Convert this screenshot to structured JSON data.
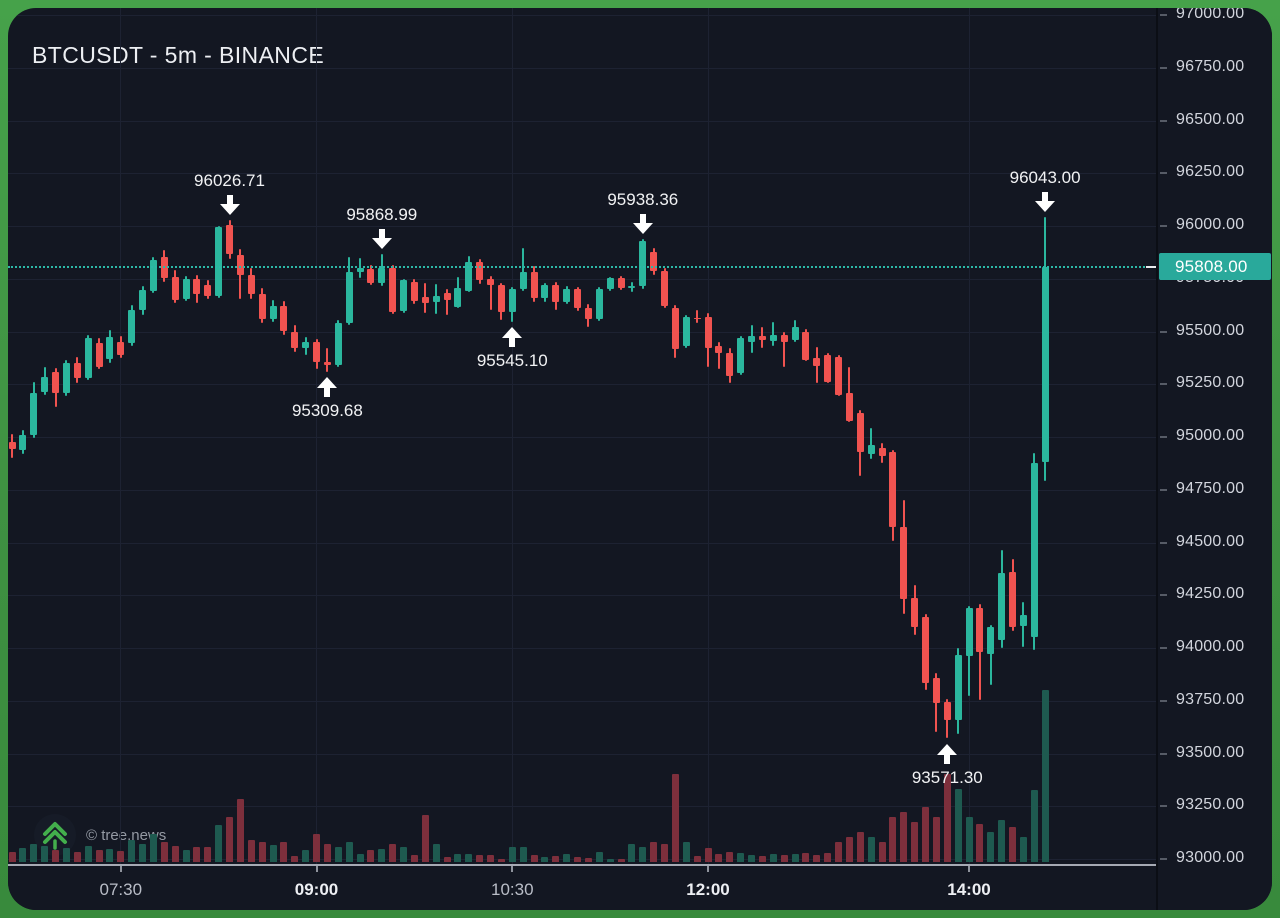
{
  "app": {
    "title": "BTCUSDT - 5m - BINANCE",
    "watermark": "© tree.news"
  },
  "colors": {
    "frame_green": "#3f9142",
    "background": "#131722",
    "candle_up": "#2bb79e",
    "candle_down": "#f05350",
    "volume_up": "#1e5a50",
    "volume_down": "#7d2f3c",
    "accent_teal": "#2cb9a8",
    "price_tag_bg": "#29a99b",
    "grid": "#1d2232",
    "axis_text": "#d2d5dd",
    "annotation_text": "#f1f2f4"
  },
  "current_price": {
    "value": "95808.00",
    "price": 95808.0
  },
  "chart_data": {
    "type": "candlestick",
    "symbol": "BTCUSDT",
    "interval": "5m",
    "exchange": "BINANCE",
    "y_range": [
      93000,
      97000
    ],
    "y_ticks": [
      97000,
      96750,
      96500,
      96250,
      96000,
      95750,
      95500,
      95250,
      95000,
      94750,
      94500,
      94250,
      94000,
      93750,
      93500,
      93250,
      93000
    ],
    "y_tick_format": "0.00",
    "x_ticks": [
      {
        "label": "07:30",
        "bold": false
      },
      {
        "label": "09:00",
        "bold": true
      },
      {
        "label": "10:30",
        "bold": false
      },
      {
        "label": "12:00",
        "bold": true
      },
      {
        "label": "14:00",
        "bold": true
      }
    ],
    "grid": true,
    "annotations": [
      {
        "time": "08:20",
        "price": 96026.71,
        "label": "96026.71",
        "direction": "down"
      },
      {
        "time": "09:30",
        "price": 95868.99,
        "label": "95868.99",
        "direction": "down"
      },
      {
        "time": "11:30",
        "price": 95938.36,
        "label": "95938.36",
        "direction": "down"
      },
      {
        "time": "14:35",
        "price": 96043.0,
        "label": "96043.00",
        "direction": "down"
      },
      {
        "time": "09:05",
        "price": 95309.68,
        "label": "95309.68",
        "direction": "up"
      },
      {
        "time": "10:30",
        "price": 95545.1,
        "label": "95545.10",
        "direction": "up"
      },
      {
        "time": "13:50",
        "price": 93571.3,
        "label": "93571.30",
        "direction": "up"
      }
    ],
    "candles_columns": [
      "time",
      "open",
      "high",
      "low",
      "close",
      "volume"
    ],
    "candles": [
      [
        "06:40",
        94975,
        95015,
        94900,
        94945,
        10
      ],
      [
        "06:45",
        94940,
        95035,
        94920,
        95010,
        14
      ],
      [
        "06:50",
        95010,
        95260,
        94995,
        95210,
        18
      ],
      [
        "06:55",
        95215,
        95330,
        95200,
        95285,
        16
      ],
      [
        "07:00",
        95310,
        95325,
        95140,
        95210,
        12
      ],
      [
        "07:05",
        95210,
        95365,
        95195,
        95350,
        14
      ],
      [
        "07:10",
        95350,
        95380,
        95255,
        95280,
        10
      ],
      [
        "07:15",
        95280,
        95485,
        95270,
        95470,
        16
      ],
      [
        "07:20",
        95445,
        95470,
        95320,
        95330,
        12
      ],
      [
        "07:25",
        95370,
        95505,
        95350,
        95475,
        13
      ],
      [
        "07:30",
        95450,
        95480,
        95375,
        95390,
        11
      ],
      [
        "07:35",
        95445,
        95625,
        95430,
        95600,
        22
      ],
      [
        "07:40",
        95600,
        95715,
        95580,
        95695,
        18
      ],
      [
        "07:45",
        95690,
        95855,
        95680,
        95840,
        28
      ],
      [
        "07:50",
        95855,
        95885,
        95735,
        95755,
        20
      ],
      [
        "07:55",
        95760,
        95790,
        95635,
        95650,
        16
      ],
      [
        "08:00",
        95655,
        95765,
        95645,
        95750,
        12
      ],
      [
        "08:05",
        95750,
        95770,
        95635,
        95680,
        15
      ],
      [
        "08:10",
        95720,
        95745,
        95655,
        95670,
        15
      ],
      [
        "08:15",
        95670,
        96000,
        95660,
        95995,
        37
      ],
      [
        "08:20",
        96005,
        96026.71,
        95845,
        95865,
        45
      ],
      [
        "08:25",
        95865,
        95890,
        95655,
        95770,
        63
      ],
      [
        "08:30",
        95770,
        95800,
        95655,
        95680,
        22
      ],
      [
        "08:35",
        95680,
        95705,
        95540,
        95560,
        20
      ],
      [
        "08:40",
        95560,
        95650,
        95545,
        95620,
        17
      ],
      [
        "08:45",
        95620,
        95645,
        95485,
        95500,
        20
      ],
      [
        "08:50",
        95500,
        95530,
        95405,
        95420,
        6
      ],
      [
        "08:55",
        95420,
        95475,
        95390,
        95450,
        12
      ],
      [
        "09:00",
        95450,
        95465,
        95320,
        95355,
        28
      ],
      [
        "09:05",
        95355,
        95420,
        95309.68,
        95340,
        18
      ],
      [
        "09:10",
        95340,
        95555,
        95330,
        95540,
        15
      ],
      [
        "09:15",
        95540,
        95855,
        95530,
        95780,
        20
      ],
      [
        "09:20",
        95780,
        95850,
        95755,
        95800,
        8
      ],
      [
        "09:25",
        95795,
        95815,
        95720,
        95730,
        12
      ],
      [
        "09:30",
        95730,
        95868.99,
        95715,
        95800,
        13
      ],
      [
        "09:35",
        95800,
        95815,
        95585,
        95590,
        18
      ],
      [
        "09:40",
        95595,
        95750,
        95590,
        95745,
        15
      ],
      [
        "09:45",
        95735,
        95750,
        95630,
        95645,
        7
      ],
      [
        "09:50",
        95665,
        95730,
        95590,
        95635,
        47
      ],
      [
        "09:55",
        95640,
        95725,
        95585,
        95670,
        18
      ],
      [
        "10:00",
        95685,
        95700,
        95580,
        95650,
        5
      ],
      [
        "10:05",
        95615,
        95760,
        95610,
        95705,
        8
      ],
      [
        "10:10",
        95690,
        95860,
        95685,
        95830,
        8
      ],
      [
        "10:15",
        95830,
        95845,
        95725,
        95745,
        7
      ],
      [
        "10:20",
        95750,
        95765,
        95600,
        95720,
        7
      ],
      [
        "10:25",
        95720,
        95730,
        95555,
        95590,
        3
      ],
      [
        "10:30",
        95590,
        95710,
        95545.1,
        95700,
        15
      ],
      [
        "10:35",
        95700,
        95895,
        95690,
        95780,
        15
      ],
      [
        "10:40",
        95780,
        95810,
        95640,
        95660,
        7
      ],
      [
        "10:45",
        95660,
        95730,
        95640,
        95720,
        5
      ],
      [
        "10:50",
        95720,
        95735,
        95600,
        95640,
        6
      ],
      [
        "10:55",
        95640,
        95715,
        95630,
        95700,
        8
      ],
      [
        "11:00",
        95700,
        95710,
        95595,
        95610,
        5
      ],
      [
        "11:05",
        95610,
        95630,
        95520,
        95560,
        4
      ],
      [
        "11:10",
        95560,
        95710,
        95550,
        95700,
        10
      ],
      [
        "11:15",
        95700,
        95760,
        95690,
        95755,
        3
      ],
      [
        "11:20",
        95755,
        95765,
        95695,
        95705,
        3
      ],
      [
        "11:25",
        95705,
        95735,
        95685,
        95715,
        18
      ],
      [
        "11:30",
        95715,
        95938.36,
        95700,
        95930,
        15
      ],
      [
        "11:35",
        95875,
        95895,
        95770,
        95785,
        20
      ],
      [
        "11:40",
        95785,
        95800,
        95610,
        95620,
        18
      ],
      [
        "11:45",
        95610,
        95625,
        95375,
        95415,
        88
      ],
      [
        "11:50",
        95430,
        95580,
        95420,
        95570,
        20
      ],
      [
        "11:55",
        95565,
        95600,
        95540,
        95560,
        6
      ],
      [
        "12:00",
        95570,
        95590,
        95330,
        95420,
        14
      ],
      [
        "12:05",
        95430,
        95450,
        95320,
        95400,
        8
      ],
      [
        "12:10",
        95400,
        95420,
        95255,
        95290,
        10
      ],
      [
        "12:15",
        95305,
        95480,
        95295,
        95470,
        9
      ],
      [
        "12:20",
        95450,
        95530,
        95400,
        95480,
        7
      ],
      [
        "12:25",
        95480,
        95520,
        95420,
        95460,
        6
      ],
      [
        "12:30",
        95455,
        95545,
        95430,
        95485,
        8
      ],
      [
        "12:35",
        95485,
        95500,
        95330,
        95450,
        7
      ],
      [
        "12:40",
        95460,
        95555,
        95450,
        95520,
        8
      ],
      [
        "12:45",
        95500,
        95510,
        95360,
        95365,
        9
      ],
      [
        "12:50",
        95375,
        95425,
        95255,
        95335,
        7
      ],
      [
        "12:55",
        95390,
        95400,
        95255,
        95260,
        9
      ],
      [
        "13:00",
        95380,
        95390,
        95195,
        95200,
        20
      ],
      [
        "13:05",
        95210,
        95330,
        95070,
        95075,
        25
      ],
      [
        "13:10",
        95115,
        95130,
        94815,
        94930,
        30
      ],
      [
        "13:15",
        94920,
        95045,
        94895,
        94960,
        25
      ],
      [
        "13:20",
        94950,
        94970,
        94875,
        94910,
        20
      ],
      [
        "13:25",
        94930,
        94940,
        94505,
        94575,
        45
      ],
      [
        "13:30",
        94575,
        94700,
        94160,
        94230,
        50
      ],
      [
        "13:35",
        94235,
        94300,
        94060,
        94100,
        40
      ],
      [
        "13:40",
        94145,
        94160,
        93800,
        93835,
        55
      ],
      [
        "13:45",
        93860,
        93880,
        93600,
        93740,
        45
      ],
      [
        "13:50",
        93745,
        93760,
        93571.3,
        93660,
        88
      ],
      [
        "13:55",
        93660,
        94000,
        93595,
        93965,
        73
      ],
      [
        "14:00",
        93960,
        94200,
        93770,
        94190,
        45
      ],
      [
        "14:05",
        94190,
        94210,
        93755,
        93980,
        38
      ],
      [
        "14:10",
        93970,
        94110,
        93825,
        94100,
        30
      ],
      [
        "14:15",
        94040,
        94465,
        94000,
        94355,
        42
      ],
      [
        "14:20",
        94360,
        94420,
        94080,
        94100,
        35
      ],
      [
        "14:25",
        94105,
        94220,
        94005,
        94155,
        25
      ],
      [
        "14:30",
        94050,
        94925,
        93990,
        94875,
        72
      ],
      [
        "14:35",
        94880,
        96043.0,
        94790,
        95808.0,
        172
      ]
    ]
  }
}
